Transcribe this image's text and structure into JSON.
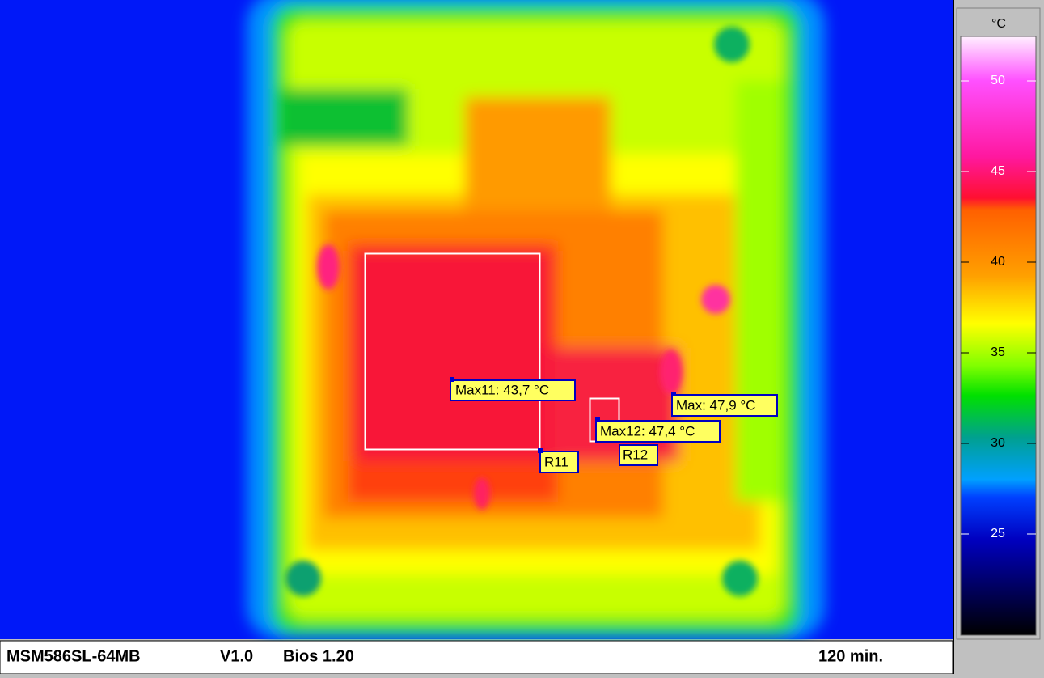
{
  "scale": {
    "unit": "°C",
    "ticks": [
      50,
      45,
      40,
      35,
      30,
      25
    ]
  },
  "annotations": [
    "Max11: 43,7 °C",
    "R11",
    "Max12: 47,4 °C",
    "R12",
    "Max: 47,9 °C"
  ],
  "status": {
    "left": [
      "MSM586SL-64MB",
      "V1.0",
      "Bios 1.20"
    ],
    "right": "120 min."
  }
}
